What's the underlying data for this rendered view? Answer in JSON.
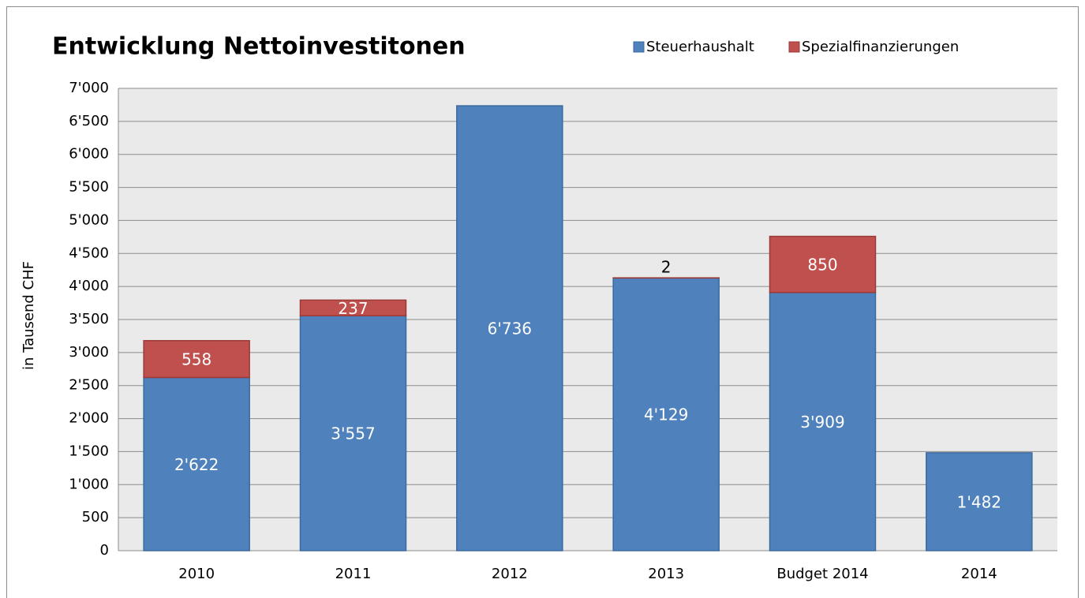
{
  "chart_data": {
    "type": "stacked_bar",
    "title": "Entwicklung Nettoinvestitonen",
    "y_label": "in Tausend CHF",
    "categories": [
      "2010",
      "2011",
      "2012",
      "2013",
      "Budget 2014",
      "2014"
    ],
    "series": [
      {
        "name": "Steuerhaushalt",
        "color": "#4f81bd",
        "values": [
          2622,
          3557,
          6736,
          4129,
          3909,
          1482
        ],
        "value_labels": [
          "2'622",
          "3'557",
          "6'736",
          "4'129",
          "3'909",
          "1'482"
        ]
      },
      {
        "name": "Spezialfinanzierungen",
        "color": "#c0504d",
        "values": [
          558,
          237,
          null,
          2,
          850,
          null
        ],
        "value_labels": [
          "558",
          "237",
          null,
          "2",
          "850",
          null
        ]
      }
    ],
    "ylim": [
      0,
      7000
    ],
    "yticks": [
      0,
      500,
      {
        "value": 1000,
        "label": "1'000"
      },
      {
        "value": 1500,
        "label": "1'500"
      },
      {
        "value": 2000,
        "label": "2'000"
      },
      {
        "value": 2500,
        "label": "2'500"
      },
      {
        "value": 3000,
        "label": "3'000"
      },
      {
        "value": 3500,
        "label": "3'500"
      },
      {
        "value": 4000,
        "label": "4'000"
      },
      {
        "value": 4500,
        "label": "4'500"
      },
      {
        "value": 5000,
        "label": "5'000"
      },
      {
        "value": 5500,
        "label": "5'500"
      },
      {
        "value": 6000,
        "label": "6'000"
      },
      {
        "value": 6500,
        "label": "6'500"
      },
      {
        "value": 7000,
        "label": "7'000"
      }
    ],
    "grid": true,
    "legend": "top-right"
  }
}
